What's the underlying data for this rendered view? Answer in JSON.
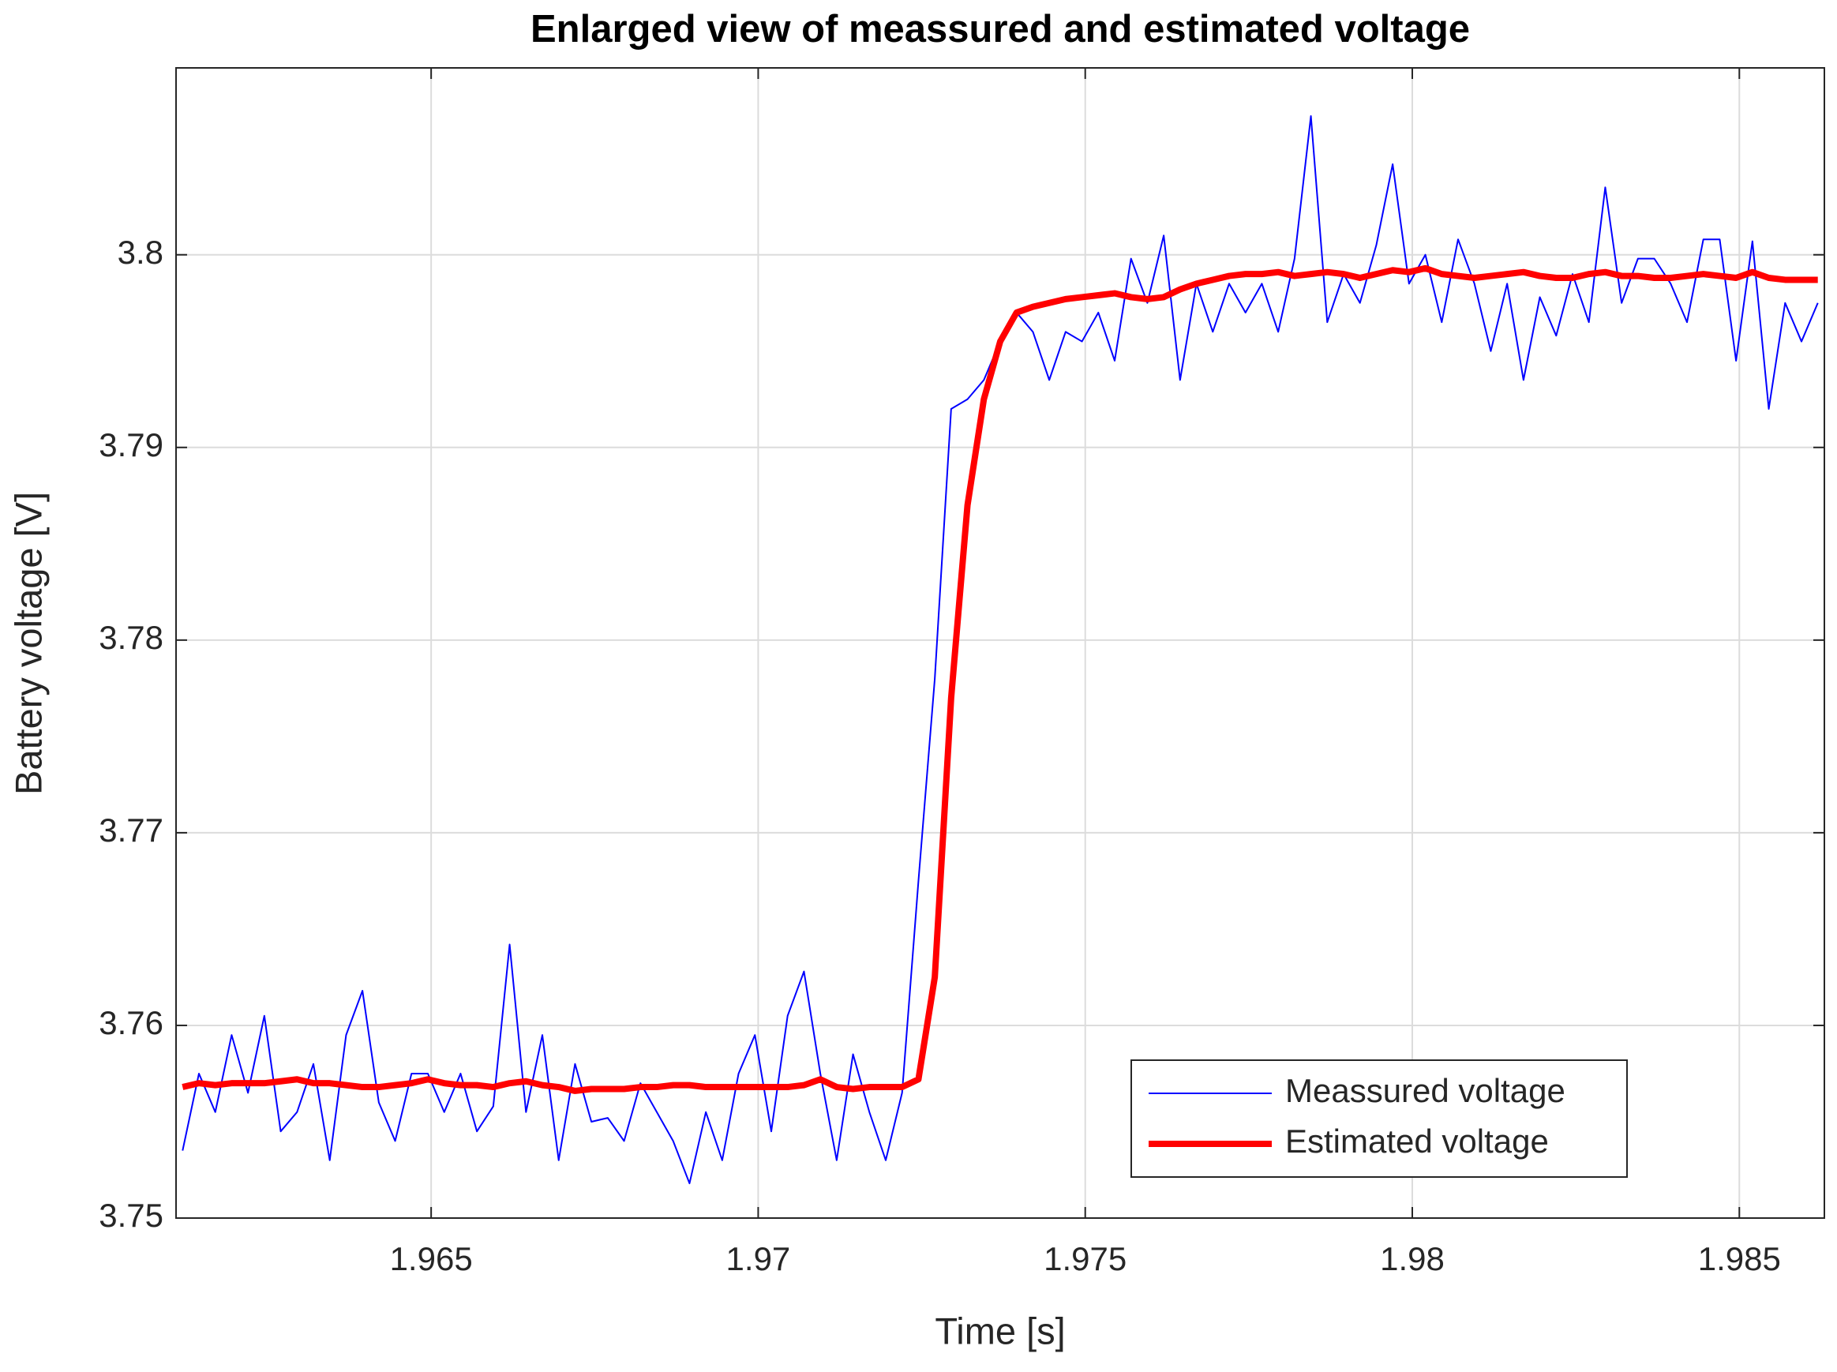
{
  "chart_data": {
    "type": "line",
    "title": "Enlarged view of meassured and estimated voltage",
    "x_label": "Time [s]",
    "y_label": "Battery voltage [V]",
    "x": [
      1.9612,
      1.96145,
      1.9617,
      1.96195,
      1.9622,
      1.96245,
      1.9627,
      1.96295,
      1.9632,
      1.96345,
      1.9637,
      1.96395,
      1.9642,
      1.96445,
      1.9647,
      1.96495,
      1.9652,
      1.96545,
      1.9657,
      1.96595,
      1.9662,
      1.96645,
      1.9667,
      1.96695,
      1.9672,
      1.96745,
      1.9677,
      1.96795,
      1.9682,
      1.96845,
      1.9687,
      1.96895,
      1.9692,
      1.96945,
      1.9697,
      1.96995,
      1.9702,
      1.97045,
      1.9707,
      1.97095,
      1.9712,
      1.97145,
      1.9717,
      1.97195,
      1.9722,
      1.97245,
      1.9727,
      1.97295,
      1.9732,
      1.97345,
      1.9737,
      1.97395,
      1.9742,
      1.97445,
      1.9747,
      1.97495,
      1.9752,
      1.97545,
      1.9757,
      1.97595,
      1.9762,
      1.97645,
      1.9767,
      1.97695,
      1.9772,
      1.97745,
      1.9777,
      1.97795,
      1.9782,
      1.97845,
      1.9787,
      1.97895,
      1.9792,
      1.97945,
      1.9797,
      1.97995,
      1.9802,
      1.98045,
      1.9807,
      1.98095,
      1.9812,
      1.98145,
      1.9817,
      1.98195,
      1.9822,
      1.98245,
      1.9827,
      1.98295,
      1.9832,
      1.98345,
      1.9837,
      1.98395,
      1.9842,
      1.98445,
      1.9847,
      1.98495,
      1.9852,
      1.98545,
      1.9857,
      1.98595,
      1.9862
    ],
    "series": [
      {
        "name": "Meassured voltage",
        "color": "#0000ff",
        "line_width": 2,
        "values": [
          3.7535,
          3.7575,
          3.7555,
          3.7595,
          3.7565,
          3.7605,
          3.7545,
          3.7555,
          3.758,
          3.753,
          3.7595,
          3.7618,
          3.756,
          3.754,
          3.7575,
          3.7575,
          3.7555,
          3.7575,
          3.7545,
          3.7558,
          3.7642,
          3.7555,
          3.7595,
          3.753,
          3.758,
          3.755,
          3.7552,
          3.754,
          3.757,
          3.7555,
          3.754,
          3.7518,
          3.7555,
          3.753,
          3.7575,
          3.7595,
          3.7545,
          3.7605,
          3.7628,
          3.7575,
          3.753,
          3.7585,
          3.7555,
          3.753,
          3.7565,
          3.7675,
          3.778,
          3.792,
          3.7925,
          3.7935,
          3.7955,
          3.797,
          3.796,
          3.7935,
          3.796,
          3.7955,
          3.797,
          3.7945,
          3.7998,
          3.7975,
          3.801,
          3.7935,
          3.7985,
          3.796,
          3.7985,
          3.797,
          3.7985,
          3.796,
          3.7998,
          3.8072,
          3.7965,
          3.799,
          3.7975,
          3.8005,
          3.8047,
          3.7985,
          3.8,
          3.7965,
          3.8008,
          3.7985,
          3.795,
          3.7985,
          3.7935,
          3.7978,
          3.7958,
          3.799,
          3.7965,
          3.8035,
          3.7975,
          3.7998,
          3.7998,
          3.7985,
          3.7965,
          3.8008,
          3.8008,
          3.7945,
          3.8007,
          3.792,
          3.7975,
          3.7955,
          3.7975
        ]
      },
      {
        "name": "Estimated voltage",
        "color": "#ff0000",
        "line_width": 8,
        "values": [
          3.7568,
          3.757,
          3.7569,
          3.757,
          3.757,
          3.757,
          3.7571,
          3.7572,
          3.757,
          3.757,
          3.7569,
          3.7568,
          3.7568,
          3.7569,
          3.757,
          3.7572,
          3.757,
          3.7569,
          3.7569,
          3.7568,
          3.757,
          3.7571,
          3.7569,
          3.7568,
          3.7566,
          3.7567,
          3.7567,
          3.7567,
          3.7568,
          3.7568,
          3.7569,
          3.7569,
          3.7568,
          3.7568,
          3.7568,
          3.7568,
          3.7568,
          3.7568,
          3.7569,
          3.7572,
          3.7568,
          3.7567,
          3.7568,
          3.7568,
          3.7568,
          3.7572,
          3.7625,
          3.777,
          3.787,
          3.7925,
          3.7955,
          3.797,
          3.7973,
          3.7975,
          3.7977,
          3.7978,
          3.7979,
          3.798,
          3.7978,
          3.7977,
          3.7978,
          3.7982,
          3.7985,
          3.7987,
          3.7989,
          3.799,
          3.799,
          3.7991,
          3.7989,
          3.799,
          3.7991,
          3.799,
          3.7988,
          3.799,
          3.7992,
          3.7991,
          3.7993,
          3.799,
          3.7989,
          3.7988,
          3.7989,
          3.799,
          3.7991,
          3.7989,
          3.7988,
          3.7988,
          3.799,
          3.7991,
          3.7989,
          3.7989,
          3.7988,
          3.7988,
          3.7989,
          3.799,
          3.7989,
          3.7988,
          3.7991,
          3.7988,
          3.7987,
          3.7987,
          3.7987
        ]
      }
    ],
    "xlim": [
      1.9611,
      1.9863
    ],
    "ylim": [
      3.75,
      3.8097
    ],
    "xticks": [
      1.965,
      1.97,
      1.975,
      1.98,
      1.985
    ],
    "yticks": [
      3.75,
      3.76,
      3.77,
      3.78,
      3.79,
      3.8
    ],
    "grid": true,
    "legend_position": "lower right"
  }
}
